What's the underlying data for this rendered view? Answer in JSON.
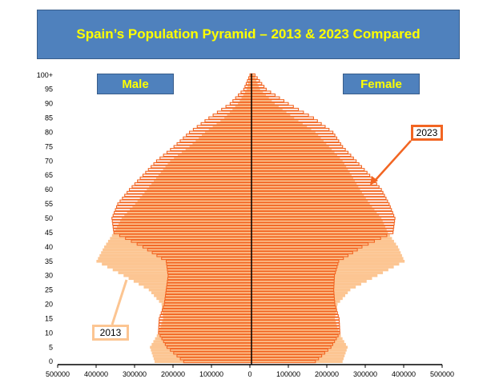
{
  "title": "Spain’s Population Pyramid – 2013 & 2023 Compared",
  "labels": {
    "male": "Male",
    "female": "Female"
  },
  "callouts": {
    "y2023": "2023",
    "y2013": "2013"
  },
  "colors": {
    "y2013_fill": "#fcc592",
    "y2023_stroke": "#f26522",
    "title_bg": "#4f81bd",
    "title_text": "#ffff00"
  },
  "chart_data": {
    "type": "bar",
    "orientation": "horizontal",
    "title": "Spain’s Population Pyramid – 2013 & 2023 Compared",
    "x_ticks": [
      "500000",
      "400000",
      "300000",
      "200000",
      "100000",
      "0",
      "100000",
      "200000",
      "300000",
      "400000",
      "500000"
    ],
    "y_tick_labels": [
      "100+",
      "95",
      "90",
      "85",
      "80",
      "75",
      "70",
      "65",
      "60",
      "55",
      "50",
      "45",
      "40",
      "35",
      "30",
      "25",
      "20",
      "15",
      "10",
      "5",
      "0"
    ],
    "xlim": [
      -500000,
      500000
    ],
    "age_groups": [
      "0",
      "5",
      "10",
      "15",
      "20",
      "25",
      "30",
      "35",
      "40",
      "45",
      "50",
      "55",
      "60",
      "65",
      "70",
      "75",
      "80",
      "85",
      "90",
      "95",
      "100+"
    ],
    "series": [
      {
        "name": "2013 Male",
        "values": [
          250000,
          262000,
          240000,
          228000,
          232000,
          265000,
          330000,
          400000,
          380000,
          355000,
          335000,
          300000,
          270000,
          240000,
          210000,
          160000,
          120000,
          70000,
          35000,
          12000,
          3000
        ]
      },
      {
        "name": "2013 Female",
        "values": [
          235000,
          248000,
          226000,
          215000,
          222000,
          255000,
          325000,
          395000,
          378000,
          352000,
          335000,
          305000,
          280000,
          258000,
          235000,
          200000,
          165000,
          110000,
          60000,
          22000,
          6000
        ]
      },
      {
        "name": "2023 Male",
        "values": [
          175000,
          218000,
          240000,
          238000,
          225000,
          220000,
          215000,
          220000,
          280000,
          355000,
          360000,
          345000,
          315000,
          280000,
          245000,
          200000,
          160000,
          110000,
          55000,
          20000,
          4000
        ]
      },
      {
        "name": "2023 Female",
        "values": [
          165000,
          205000,
          228000,
          226000,
          215000,
          212000,
          214000,
          225000,
          285000,
          365000,
          370000,
          355000,
          335000,
          305000,
          270000,
          235000,
          210000,
          160000,
          95000,
          38000,
          9000
        ]
      }
    ]
  }
}
